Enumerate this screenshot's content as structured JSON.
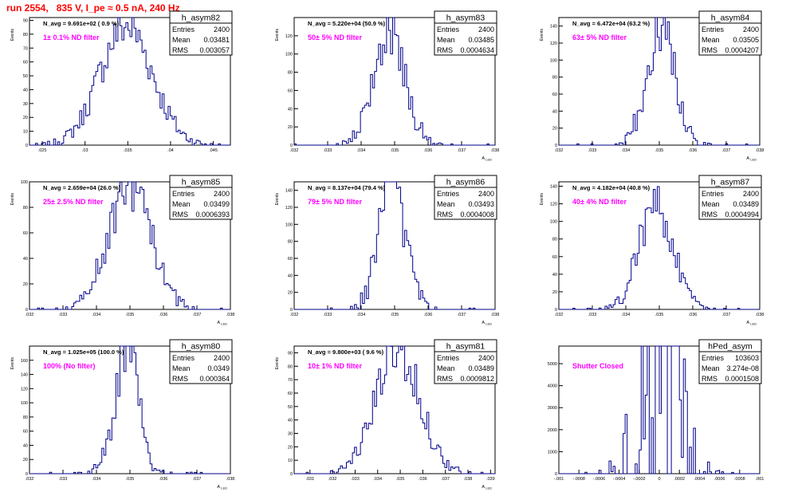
{
  "page_title": "run 2554,   835 V, I_pe ≈ 0.5 nA, 240 Hz",
  "colors": {
    "title": "#ff0000",
    "histogram": "#00008b",
    "annotation": "#ff00ff",
    "axis": "#000000"
  },
  "chart_data": [
    {
      "type": "histogram",
      "name": "h_asym82",
      "nav": "N_avg = 9.691e+02 ( 0.9 %)",
      "filter": "1± 0.1% ND filter",
      "stats": {
        "entries": "2400",
        "mean": "0.03481",
        "rms": "0.003057"
      },
      "xlim": [
        0.0235,
        0.047
      ],
      "ylim": [
        0,
        92
      ],
      "xticks": [
        0.025,
        0.03,
        0.035,
        0.04,
        0.045
      ],
      "yticks": [
        0,
        10,
        20,
        30,
        40,
        50,
        60,
        70,
        80,
        90
      ],
      "ylabel": "Events",
      "xlabel": "",
      "mean": 0.03481,
      "sigma": 0.003057,
      "peak": 86
    },
    {
      "type": "histogram",
      "name": "h_asym83",
      "nav": "N_avg = 5.220e+04 (50.9 %)",
      "filter": "50± 5% ND filter",
      "stats": {
        "entries": "2400",
        "mean": "0.03485",
        "rms": "0.0004634"
      },
      "xlim": [
        0.032,
        0.038
      ],
      "ylim": [
        0,
        140
      ],
      "xticks": [
        0.032,
        0.033,
        0.034,
        0.035,
        0.036,
        0.037,
        0.038
      ],
      "yticks": [
        0,
        20,
        40,
        60,
        80,
        100,
        120
      ],
      "ylabel": "Events",
      "xlabel": "A_LED",
      "mean": 0.03485,
      "sigma": 0.0004634,
      "peak": 128
    },
    {
      "type": "histogram",
      "name": "h_asym84",
      "nav": "N_avg = 6.472e+04 (63.2 %)",
      "filter": "63± 5% ND filter",
      "stats": {
        "entries": "2400",
        "mean": "0.03505",
        "rms": "0.0004207"
      },
      "xlim": [
        0.032,
        0.038
      ],
      "ylim": [
        0,
        150
      ],
      "xticks": [
        0.032,
        0.033,
        0.034,
        0.035,
        0.036,
        0.037,
        0.038
      ],
      "yticks": [
        0,
        20,
        40,
        60,
        80,
        100,
        120,
        140
      ],
      "ylabel": "Events",
      "xlabel": "A_LED",
      "mean": 0.03505,
      "sigma": 0.0004207,
      "peak": 140
    },
    {
      "type": "histogram",
      "name": "h_asym85",
      "nav": "N_avg = 2.659e+04 (26.0 %)",
      "filter": "25± 2.5% ND filter",
      "stats": {
        "entries": "2400",
        "mean": "0.03499",
        "rms": "0.0006393"
      },
      "xlim": [
        0.032,
        0.038
      ],
      "ylim": [
        0,
        100
      ],
      "xticks": [
        0.032,
        0.033,
        0.034,
        0.035,
        0.036,
        0.037,
        0.038
      ],
      "yticks": [
        0,
        20,
        40,
        60,
        80,
        100
      ],
      "ylabel": "Events",
      "xlabel": "A_LED",
      "mean": 0.03499,
      "sigma": 0.0006393,
      "peak": 95
    },
    {
      "type": "histogram",
      "name": "h_asym86",
      "nav": "N_avg = 8.137e+04 (79.4 %)",
      "filter": "79± 5% ND filter",
      "stats": {
        "entries": "2400",
        "mean": "0.03493",
        "rms": "0.0004008"
      },
      "xlim": [
        0.032,
        0.038
      ],
      "ylim": [
        0,
        150
      ],
      "xticks": [
        0.032,
        0.033,
        0.034,
        0.035,
        0.036,
        0.037,
        0.038
      ],
      "yticks": [
        0,
        20,
        40,
        60,
        80,
        100,
        120,
        140
      ],
      "ylabel": "Events",
      "xlabel": "A_LED",
      "mean": 0.03493,
      "sigma": 0.0004008,
      "peak": 148
    },
    {
      "type": "histogram",
      "name": "h_asym87",
      "nav": "N_avg = 4.182e+04 (40.8 %)",
      "filter": "40± 4% ND filter",
      "stats": {
        "entries": "2400",
        "mean": "0.03489",
        "rms": "0.0004994"
      },
      "xlim": [
        0.032,
        0.038
      ],
      "ylim": [
        0,
        145
      ],
      "xticks": [
        0.032,
        0.033,
        0.034,
        0.035,
        0.036,
        0.037,
        0.038
      ],
      "yticks": [
        0,
        20,
        40,
        60,
        80,
        100,
        120,
        140
      ],
      "ylabel": "Events",
      "xlabel": "A_LED",
      "mean": 0.03489,
      "sigma": 0.0004994,
      "peak": 120
    },
    {
      "type": "histogram",
      "name": "h_asym80",
      "nav": "N_avg = 1.025e+05 (100.0 %)",
      "filter": "100% (No filter)",
      "stats": {
        "entries": "2400",
        "mean": "0.0349",
        "rms": "0.000364"
      },
      "xlim": [
        0.032,
        0.038
      ],
      "ylim": [
        0,
        180
      ],
      "xticks": [
        0.032,
        0.033,
        0.034,
        0.035,
        0.036,
        0.037,
        0.038
      ],
      "yticks": [
        0,
        20,
        40,
        60,
        80,
        100,
        120,
        140,
        160
      ],
      "ylabel": "Events",
      "xlabel": "A_LED",
      "mean": 0.0349,
      "sigma": 0.000364,
      "peak": 170
    },
    {
      "type": "histogram",
      "name": "h_asym81",
      "nav": "N_avg = 9.800e+03 ( 9.6 %)",
      "filter": "10± 1% ND filter",
      "stats": {
        "entries": "2400",
        "mean": "0.03489",
        "rms": "0.0009812"
      },
      "xlim": [
        0.0303,
        0.0392
      ],
      "ylim": [
        0,
        95
      ],
      "xticks": [
        0.031,
        0.032,
        0.033,
        0.034,
        0.035,
        0.036,
        0.037,
        0.038,
        0.039
      ],
      "yticks": [
        0,
        10,
        20,
        30,
        40,
        50,
        60,
        70,
        80,
        90
      ],
      "ylabel": "Events",
      "xlabel": "A_LED",
      "mean": 0.03489,
      "sigma": 0.0009812,
      "peak": 92
    },
    {
      "type": "histogram",
      "name": "hPed_asym",
      "nav": "",
      "filter": "Shutter Closed",
      "stats": {
        "entries": "103603",
        "mean": "3.274e-08",
        "rms": "0.0001508"
      },
      "xlim": [
        -0.001,
        0.001
      ],
      "ylim": [
        0,
        5800
      ],
      "xticks": [
        -0.001,
        -0.0008,
        -0.0006,
        -0.0004,
        -0.0002,
        0,
        0.0002,
        0.0004,
        0.0006,
        0.0008,
        0.001
      ],
      "yticks": [
        0,
        1000,
        2000,
        3000,
        4000,
        5000
      ],
      "ylabel": "",
      "xlabel": "",
      "mean": 3.27e-08,
      "sigma": 0.0001508,
      "peak": 5400
    }
  ]
}
